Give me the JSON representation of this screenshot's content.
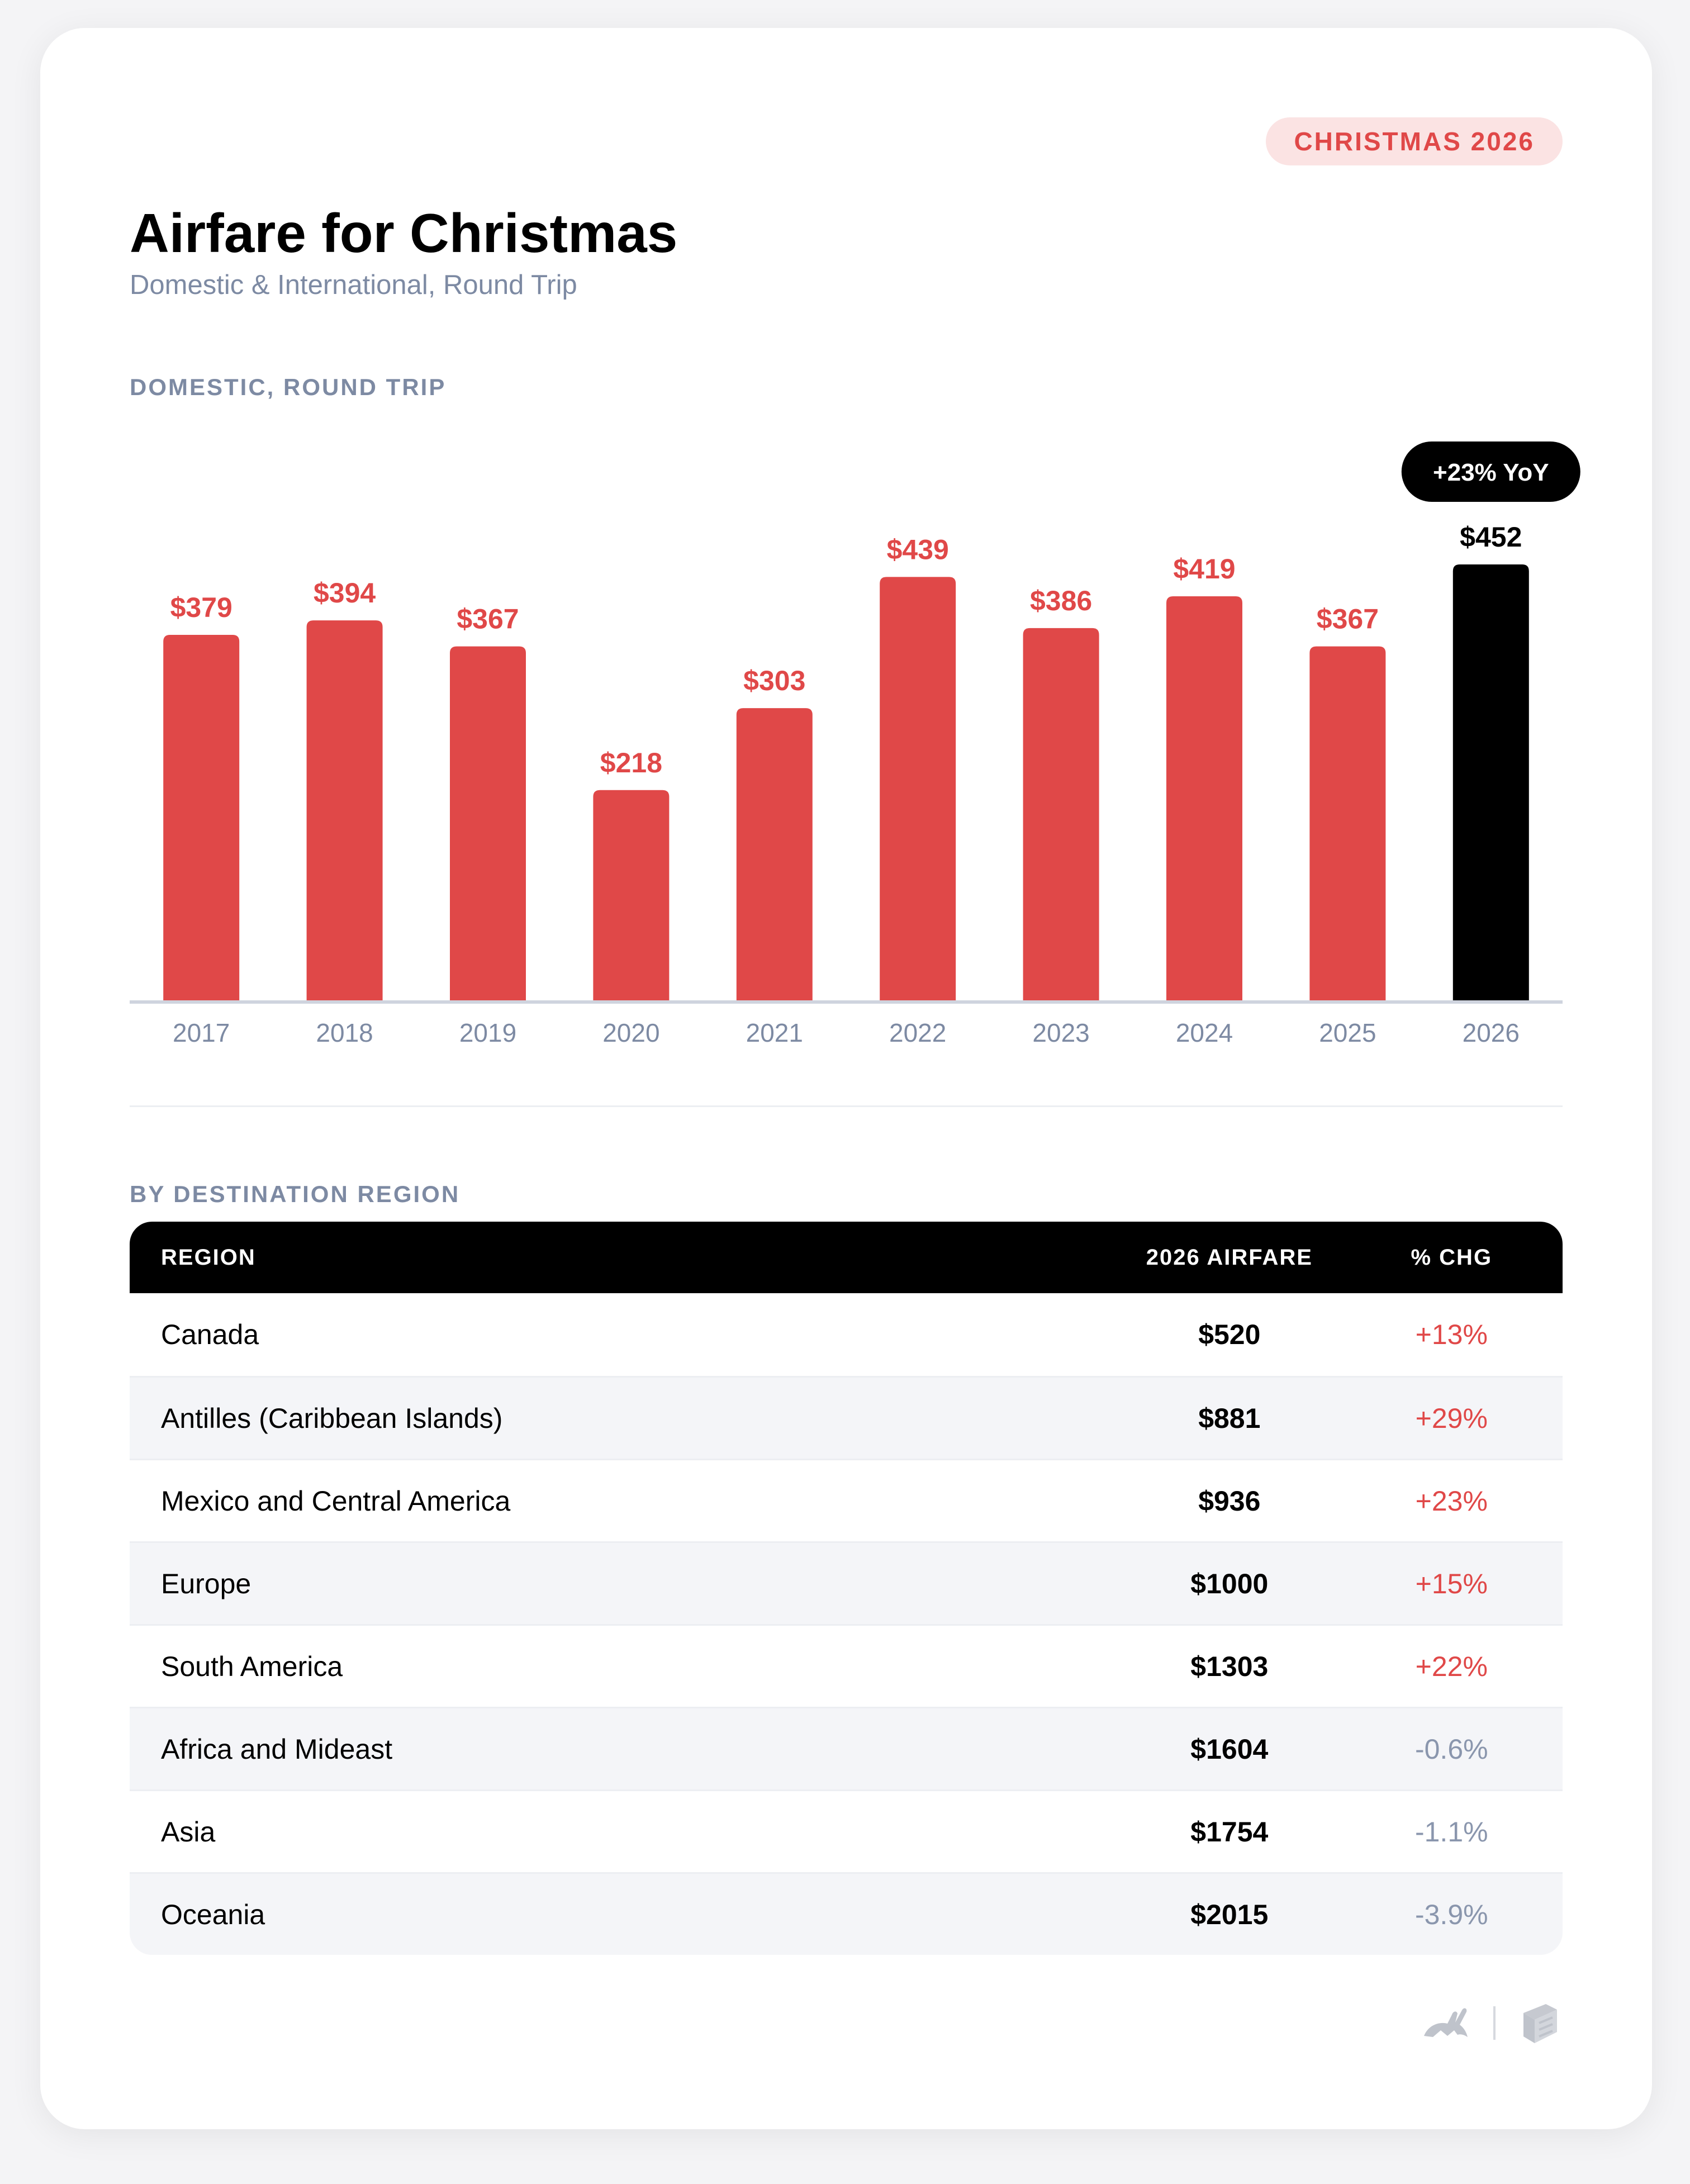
{
  "badge": "CHRISTMAS 2026",
  "title": "Airfare for Christmas",
  "subtitle": "Domestic & International, Round Trip",
  "chart_data": {
    "type": "bar",
    "title": "DOMESTIC, ROUND TRIP",
    "categories": [
      "2017",
      "2018",
      "2019",
      "2020",
      "2021",
      "2022",
      "2023",
      "2024",
      "2025",
      "2026"
    ],
    "values": [
      379,
      394,
      367,
      218,
      303,
      439,
      386,
      419,
      367,
      452
    ],
    "data_labels": [
      "$379",
      "$394",
      "$367",
      "$218",
      "$303",
      "$439",
      "$386",
      "$419",
      "$367",
      "$452"
    ],
    "highlight_index": 9,
    "highlight_label": "+23% YoY",
    "ylim": [
      0,
      452
    ],
    "grid": false,
    "colors": {
      "default": "#e04848",
      "highlight": "#000000"
    }
  },
  "region_section_label": "BY DESTINATION REGION",
  "table": {
    "headers": {
      "region": "REGION",
      "fare": "2026 AIRFARE",
      "chg": "% CHG"
    },
    "rows": [
      {
        "region": "Canada",
        "fare": "$520",
        "chg": "+13%",
        "dir": "up"
      },
      {
        "region": "Antilles (Caribbean Islands)",
        "fare": "$881",
        "chg": "+29%",
        "dir": "up"
      },
      {
        "region": "Mexico and Central America",
        "fare": "$936",
        "chg": "+23%",
        "dir": "up"
      },
      {
        "region": "Europe",
        "fare": "$1000",
        "chg": "+15%",
        "dir": "up"
      },
      {
        "region": "South America",
        "fare": "$1303",
        "chg": "+22%",
        "dir": "up"
      },
      {
        "region": "Africa and Mideast",
        "fare": "$1604",
        "chg": "-0.6%",
        "dir": "down"
      },
      {
        "region": "Asia",
        "fare": "$1754",
        "chg": "-1.1%",
        "dir": "down"
      },
      {
        "region": "Oceania",
        "fare": "$2015",
        "chg": "-3.9%",
        "dir": "down"
      }
    ]
  },
  "footer": {
    "logos": [
      "rabbit-logo-icon",
      "stacked-pages-logo-icon"
    ]
  }
}
